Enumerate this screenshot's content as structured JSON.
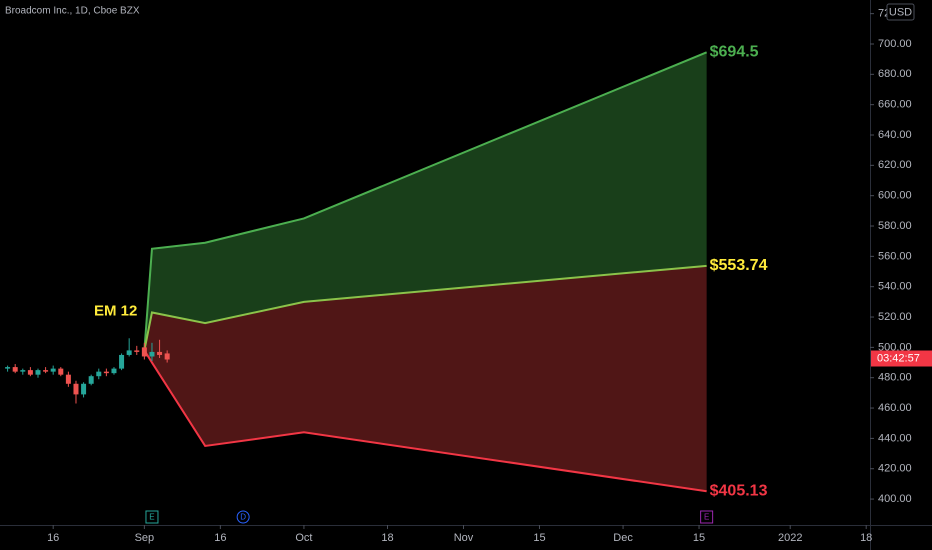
{
  "chart_data": {
    "type": "candlestick",
    "title": "Broadcom Inc., 1D, Cboe BZX",
    "currency": "USD",
    "annotation": "EM 12",
    "countdown": "03:42:57",
    "xlim": [
      -19,
      95.5
    ],
    "ylim": [
      382.9,
      729
    ],
    "xticks": [
      {
        "value": -12,
        "label": "16"
      },
      {
        "value": 0,
        "label": "Sep"
      },
      {
        "value": 10,
        "label": "16"
      },
      {
        "value": 21,
        "label": "Oct"
      },
      {
        "value": 32,
        "label": "18"
      },
      {
        "value": 42,
        "label": "Nov"
      },
      {
        "value": 52,
        "label": "15"
      },
      {
        "value": 63,
        "label": "Dec"
      },
      {
        "value": 73,
        "label": "15"
      },
      {
        "value": 85,
        "label": "2022"
      },
      {
        "value": 95,
        "label": "18"
      }
    ],
    "yticks": [
      {
        "value": 400,
        "label": "400.00"
      },
      {
        "value": 420,
        "label": "420.00"
      },
      {
        "value": 440,
        "label": "440.00"
      },
      {
        "value": 460,
        "label": "460.00"
      },
      {
        "value": 480,
        "label": "480.00"
      },
      {
        "value": 500,
        "label": "500.00"
      },
      {
        "value": 520,
        "label": "520.00"
      },
      {
        "value": 540,
        "label": "540.00"
      },
      {
        "value": 560,
        "label": "560.00"
      },
      {
        "value": 580,
        "label": "580.00"
      },
      {
        "value": 600,
        "label": "600.00"
      },
      {
        "value": 620,
        "label": "620.00"
      },
      {
        "value": 640,
        "label": "640.00"
      },
      {
        "value": 660,
        "label": "660.00"
      },
      {
        "value": 680,
        "label": "680.00"
      },
      {
        "value": 700,
        "label": "700.00"
      },
      {
        "value": 720,
        "label": "720.00"
      }
    ],
    "candles": {
      "up_color": "#26a69a",
      "down_color": "#ef5350",
      "x": [
        -18,
        -17,
        -16,
        -15,
        -14,
        -13,
        -12,
        -11,
        -10,
        -9,
        -8,
        -7,
        -6,
        -5,
        -4,
        -3,
        -2,
        -1,
        0,
        1,
        2,
        3
      ],
      "open": [
        486,
        487,
        484,
        485,
        482,
        485,
        484,
        486,
        482,
        476,
        469,
        476,
        481,
        484,
        483,
        486,
        495,
        498,
        500,
        494,
        497,
        496
      ],
      "high": [
        488,
        489,
        486,
        487,
        486,
        487,
        488,
        487,
        484,
        478,
        477,
        482,
        486,
        486,
        487,
        496,
        506,
        501,
        503,
        503,
        505,
        498
      ],
      "low": [
        484,
        483,
        482,
        481,
        480,
        483,
        482,
        481,
        474,
        463,
        467,
        475,
        479,
        481,
        482,
        485,
        494,
        495,
        492,
        491,
        493,
        490
      ],
      "close": [
        487,
        484,
        485,
        482,
        485,
        484,
        486,
        482,
        476,
        469,
        476,
        481,
        484,
        483,
        486,
        495,
        498,
        497,
        494,
        497,
        495,
        492
      ]
    },
    "projection_x": [
      0,
      1,
      8,
      21,
      74
    ],
    "series": [
      {
        "color": "#4caf50",
        "label_color": "#4caf50",
        "fill": "#1d4a1f",
        "values": [
          498,
          565,
          569,
          585,
          694.5
        ],
        "value_labels": [
          null,
          null,
          null,
          null,
          "$694.5"
        ]
      },
      {
        "color": "#8bc34a",
        "label_color": "#ffeb3b",
        "fill": "#5e1a1a",
        "values": [
          498,
          523,
          516,
          530,
          553.74
        ],
        "value_labels": [
          null,
          null,
          null,
          null,
          "$553.74"
        ]
      },
      {
        "color": "#f23645",
        "label_color": "#f23645",
        "values": [
          498,
          490,
          435,
          444,
          405.13
        ],
        "value_labels": [
          null,
          null,
          null,
          null,
          "$405.13"
        ]
      }
    ],
    "events": [
      {
        "x": 1,
        "label": "E",
        "color": "#26a69a"
      },
      {
        "x": 13,
        "label": "D",
        "color": "#2962ff"
      },
      {
        "x": 74,
        "label": "E",
        "color": "#9c27b0"
      }
    ]
  }
}
